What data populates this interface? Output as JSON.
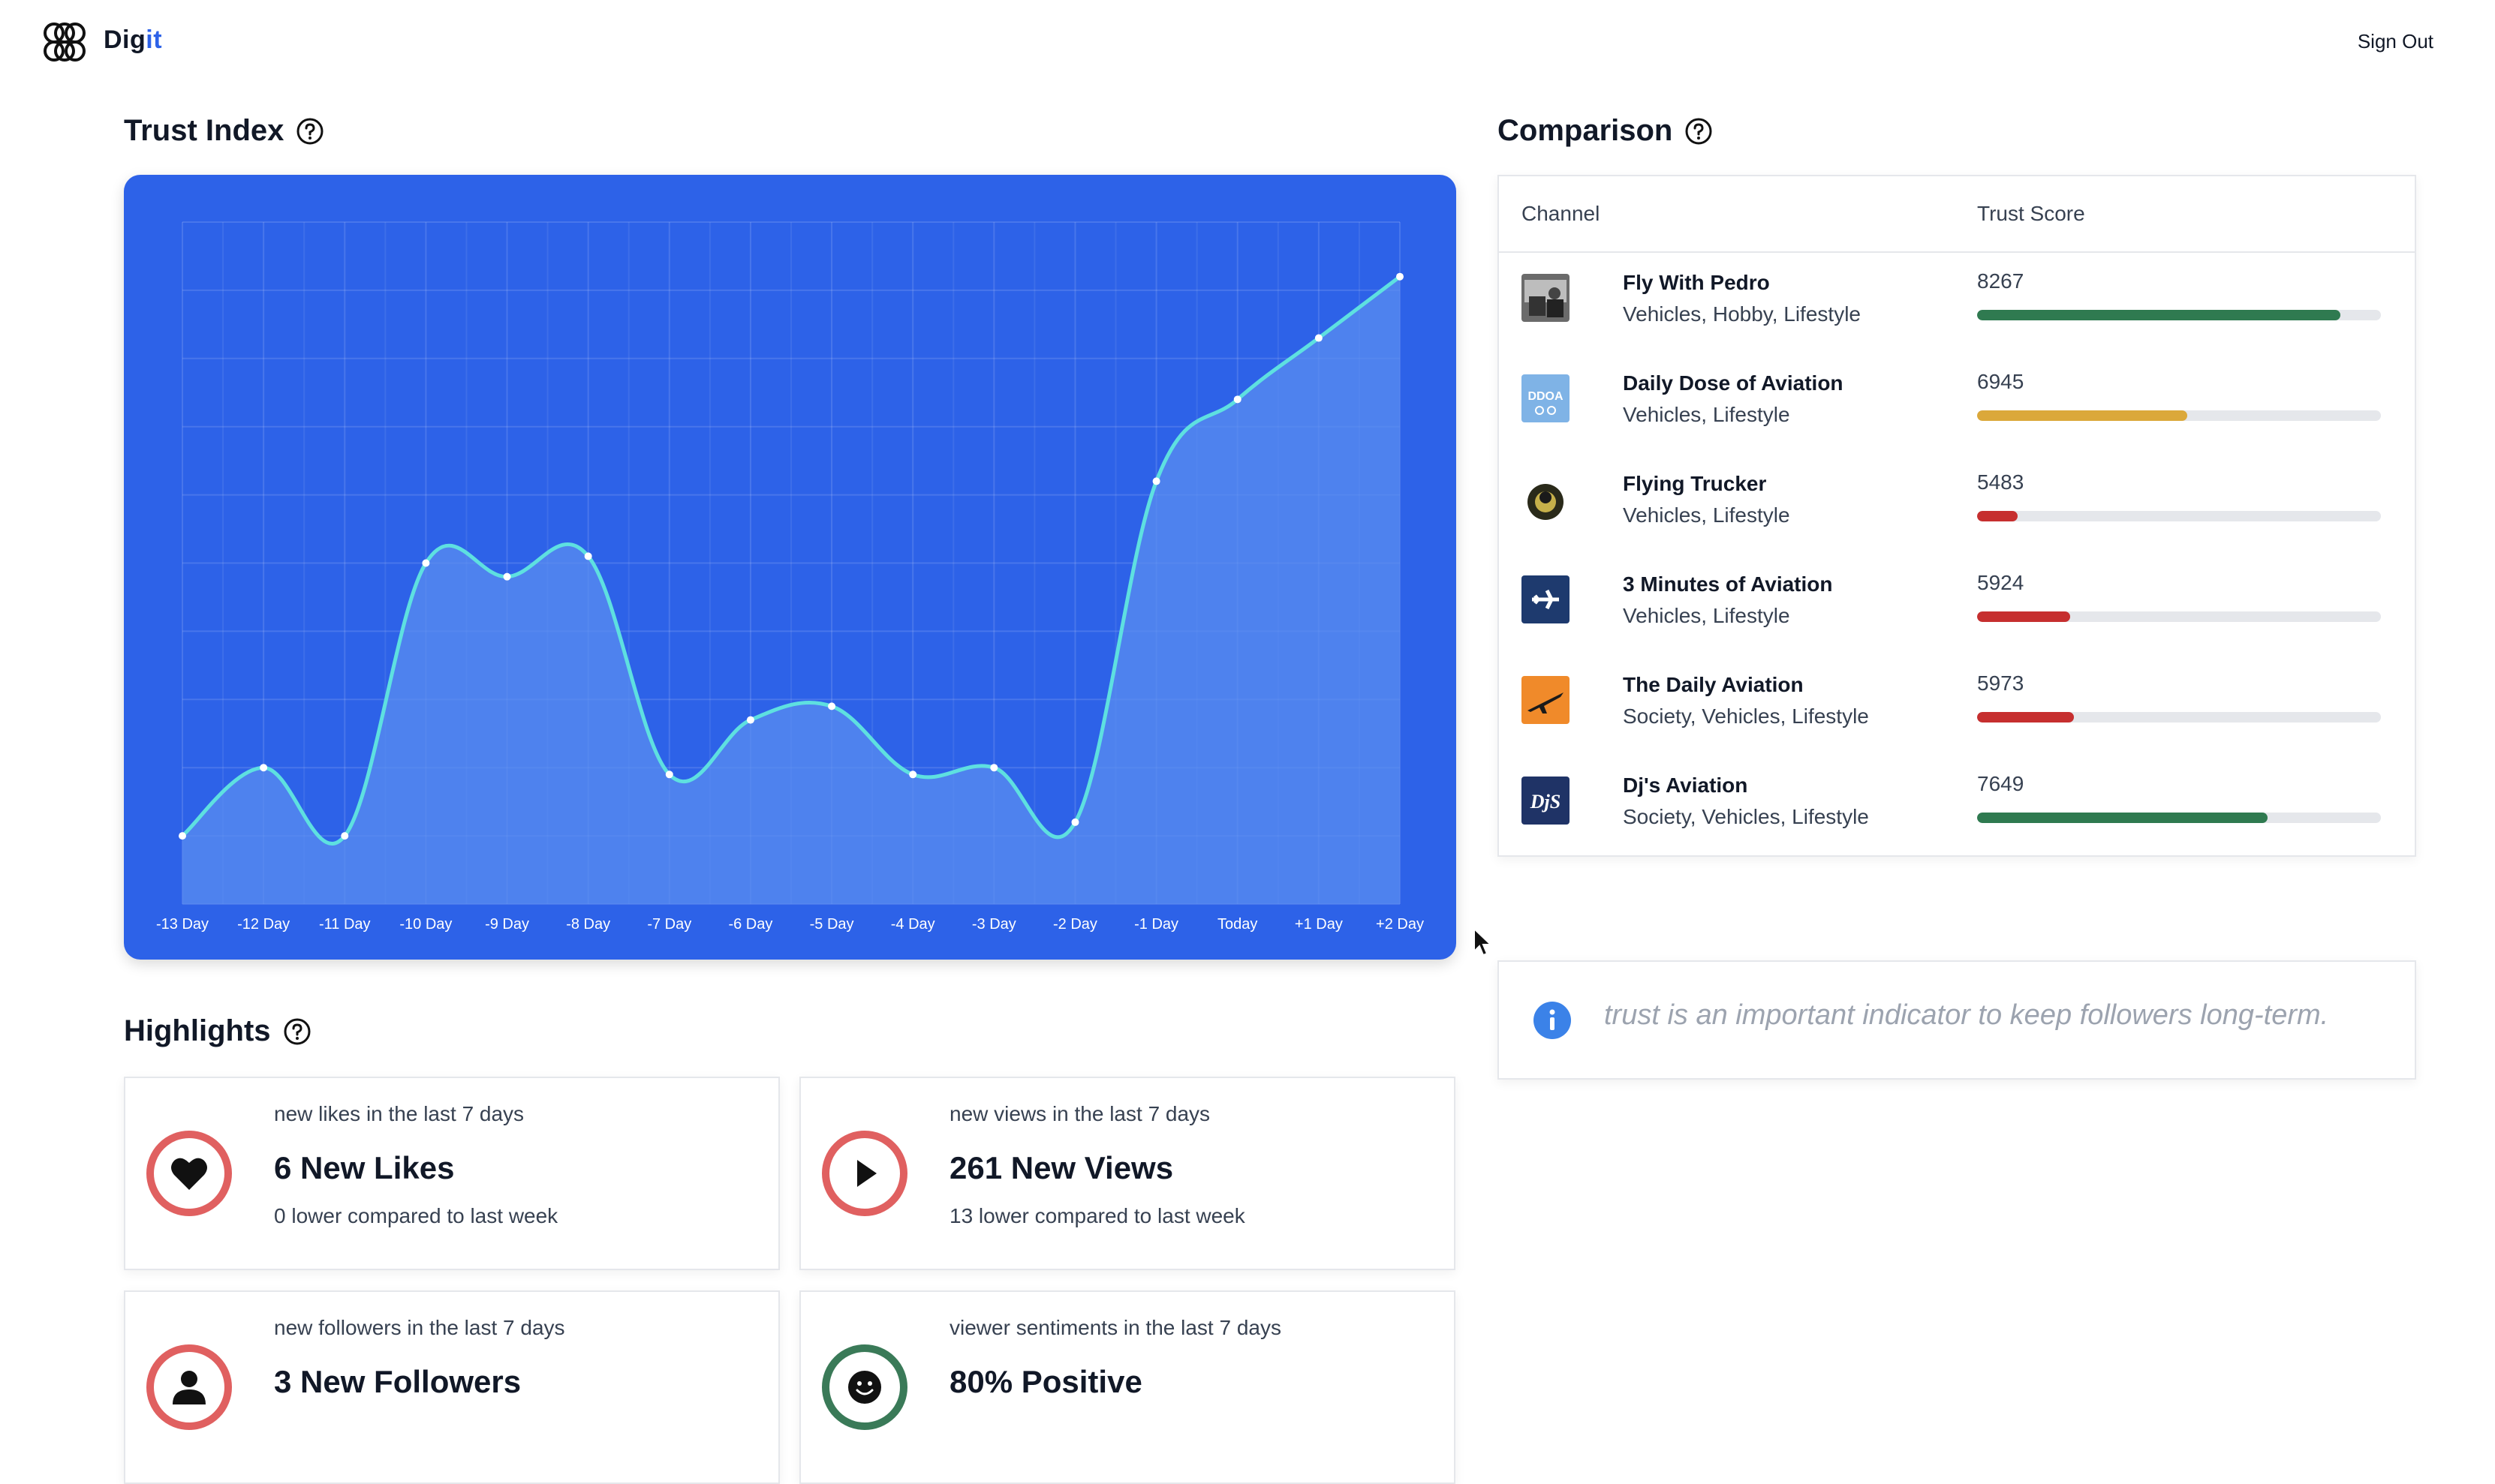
{
  "header": {
    "brand_prefix": "Dig",
    "brand_accent": "it",
    "sign_out": "Sign Out"
  },
  "trust_index": {
    "title": "Trust Index",
    "chart_data": {
      "type": "area",
      "x": [
        "-13 Day",
        "-12 Day",
        "-11 Day",
        "-10 Day",
        "-9 Day",
        "-8 Day",
        "-7 Day",
        "-6 Day",
        "-5 Day",
        "-4 Day",
        "-3 Day",
        "-2 Day",
        "-1 Day",
        "Today",
        "+1 Day",
        "+2 Day"
      ],
      "values": [
        1.0,
        2.0,
        1.0,
        5.0,
        4.8,
        5.1,
        1.9,
        2.7,
        2.9,
        1.9,
        2.0,
        1.2,
        6.2,
        7.4,
        8.3,
        9.2
      ],
      "ylim": [
        0,
        10
      ],
      "grid": true,
      "colors": {
        "background": "#2d62e8",
        "line": "#5ee0e0",
        "fill": "#5a8df0"
      }
    }
  },
  "comparison": {
    "title": "Comparison",
    "col_channel": "Channel",
    "col_score": "Trust Score",
    "rows": [
      {
        "name": "Fly With Pedro",
        "categories": "Vehicles, Hobby, Lifestyle",
        "score": "8267",
        "progress": 0.9,
        "color": "#2f7a50",
        "thumb": "photo"
      },
      {
        "name": "Daily Dose of Aviation",
        "categories": "Vehicles, Lifestyle",
        "score": "6945",
        "progress": 0.52,
        "color": "#dba83a",
        "thumb": "ddoa"
      },
      {
        "name": "Flying Trucker",
        "categories": "Vehicles, Lifestyle",
        "score": "5483",
        "progress": 0.1,
        "color": "#c62f2f",
        "thumb": "trucker"
      },
      {
        "name": "3 Minutes of Aviation",
        "categories": "Vehicles, Lifestyle",
        "score": "5924",
        "progress": 0.23,
        "color": "#c62f2f",
        "thumb": "plane"
      },
      {
        "name": "The Daily Aviation",
        "categories": "Society, Vehicles, Lifestyle",
        "score": "5973",
        "progress": 0.24,
        "color": "#c62f2f",
        "thumb": "orange"
      },
      {
        "name": "Dj's Aviation",
        "categories": "Society, Vehicles, Lifestyle",
        "score": "7649",
        "progress": 0.72,
        "color": "#2f7a50",
        "thumb": "djs"
      }
    ]
  },
  "info": {
    "text": "trust is an important indicator to keep followers long-term."
  },
  "highlights": {
    "title": "Highlights",
    "cards": [
      {
        "sub": "new likes in the last 7 days",
        "main": "6 New Likes",
        "compare": "0 lower compared to last week",
        "icon": "heart-icon"
      },
      {
        "sub": "new views in the last 7 days",
        "main": "261 New Views",
        "compare": "13 lower compared to last week",
        "icon": "play-icon"
      },
      {
        "sub": "new followers in the last 7 days",
        "main": "3 New Followers",
        "compare": "",
        "icon": "person-icon"
      },
      {
        "sub": "viewer sentiments in the last 7 days",
        "main": "80% Positive",
        "compare": "",
        "icon": "smiley-icon"
      }
    ]
  }
}
